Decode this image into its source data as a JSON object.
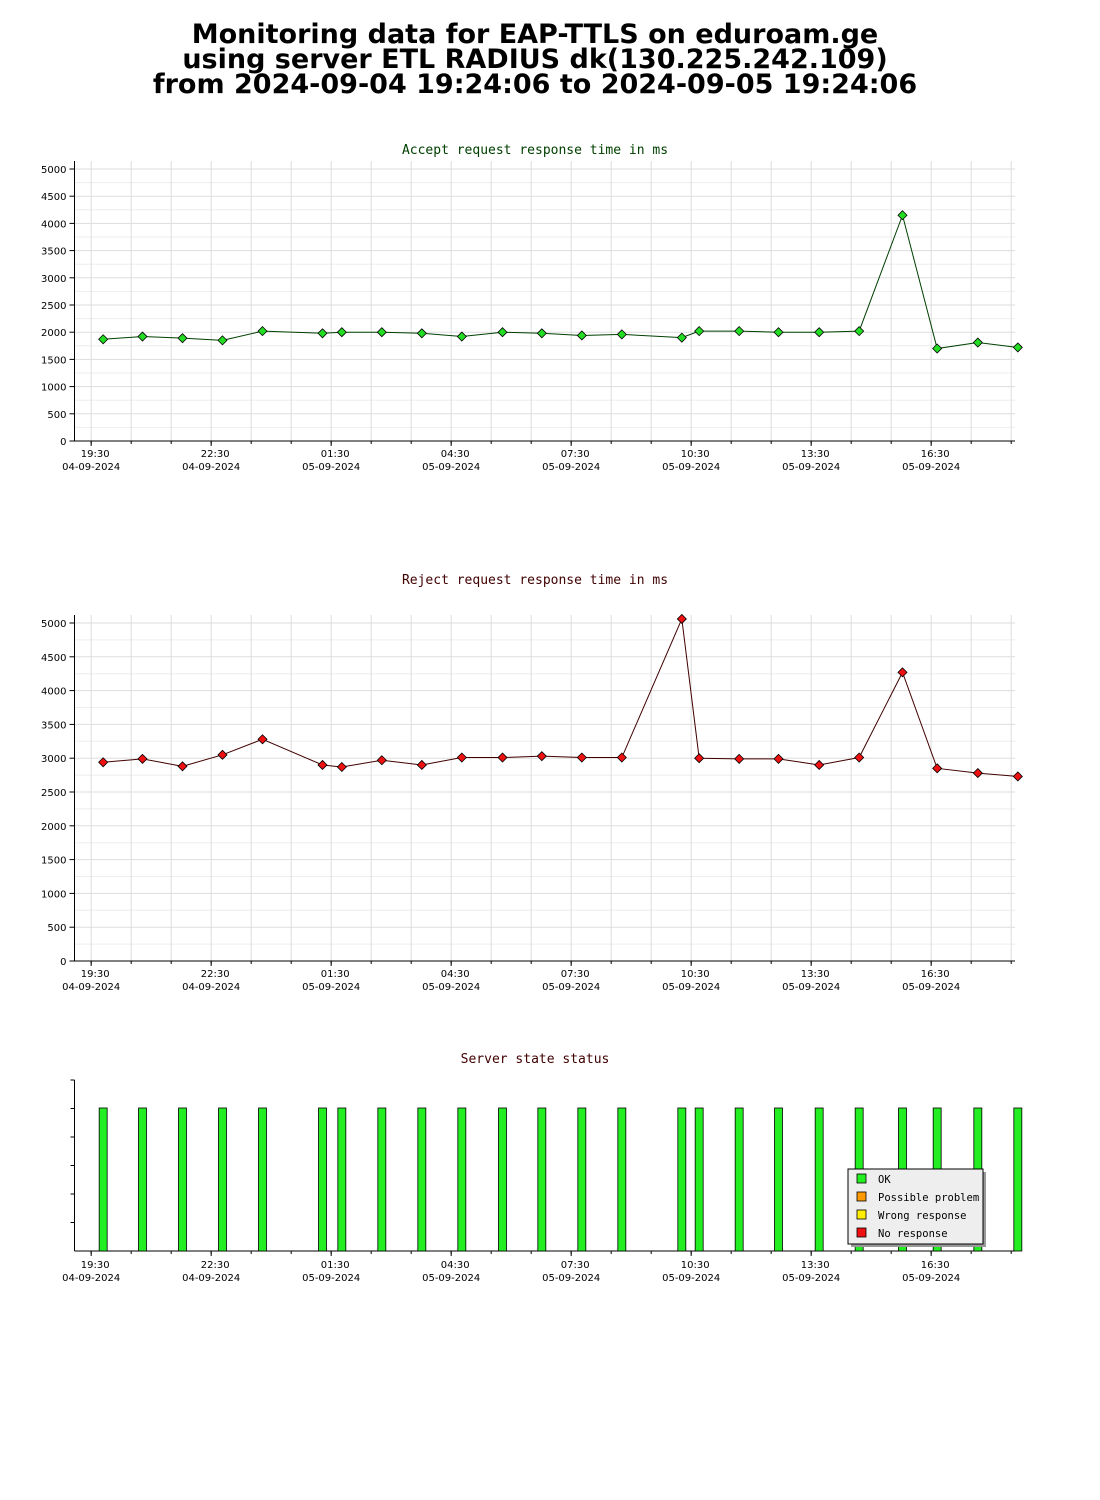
{
  "header": {
    "line1": "Monitoring data for EAP-TTLS on eduroam.ge",
    "line2": "using server ETL RADIUS dk(130.225.242.109)",
    "line3": "from 2024-09-04 19:24:06 to 2024-09-05 19:24:06"
  },
  "colors": {
    "accept_line": "#004000",
    "accept_marker": "#22dd22",
    "reject_line": "#400000",
    "reject_marker": "#ee1111",
    "accept_title": "#004000",
    "reject_title": "#400000",
    "status_title": "#400000",
    "grid": "#dddddd",
    "ok": "#22ee22",
    "possible_problem": "#ff9900",
    "wrong_response": "#ffee00",
    "no_response": "#ee1111"
  },
  "x_axis": {
    "ticks": [
      {
        "time": "19:30",
        "date": "04-09-2024"
      },
      {
        "time": "22:30",
        "date": "04-09-2024"
      },
      {
        "time": "01:30",
        "date": "05-09-2024"
      },
      {
        "time": "04:30",
        "date": "05-09-2024"
      },
      {
        "time": "07:30",
        "date": "05-09-2024"
      },
      {
        "time": "10:30",
        "date": "05-09-2024"
      },
      {
        "time": "13:30",
        "date": "05-09-2024"
      },
      {
        "time": "16:30",
        "date": "05-09-2024"
      }
    ]
  },
  "chart_data": [
    {
      "type": "line",
      "title": "Accept request response time in ms",
      "ylim": [
        0,
        5000
      ],
      "yticks": [
        0,
        500,
        1000,
        1500,
        2000,
        2500,
        3000,
        3500,
        4000,
        4500,
        5000
      ],
      "grid": true,
      "x": [
        "19:48",
        "20:47",
        "21:47",
        "22:47",
        "23:47",
        "01:17",
        "01:46",
        "02:46",
        "03:46",
        "04:46",
        "05:47",
        "06:46",
        "07:46",
        "08:46",
        "10:16",
        "10:42",
        "11:42",
        "12:41",
        "13:42",
        "14:42",
        "15:47",
        "16:39",
        "17:40",
        "18:40"
      ],
      "values": [
        1870,
        1920,
        1890,
        1850,
        2020,
        1980,
        2000,
        2000,
        1980,
        1920,
        2000,
        1980,
        1940,
        1960,
        1900,
        2020,
        2020,
        2000,
        2000,
        2020,
        4150,
        1700,
        1810,
        1720
      ]
    },
    {
      "type": "line",
      "title": "Reject request response time in ms",
      "ylim": [
        0,
        5000
      ],
      "yticks": [
        0,
        500,
        1000,
        1500,
        2000,
        2500,
        3000,
        3500,
        4000,
        4500,
        5000
      ],
      "grid": true,
      "x": [
        "19:48",
        "20:47",
        "21:47",
        "22:47",
        "23:47",
        "01:17",
        "01:46",
        "02:46",
        "03:46",
        "04:46",
        "05:47",
        "06:46",
        "07:46",
        "08:46",
        "10:16",
        "10:42",
        "11:42",
        "12:41",
        "13:42",
        "14:42",
        "15:47",
        "16:39",
        "17:40",
        "18:40"
      ],
      "values": [
        2940,
        2990,
        2880,
        3050,
        3280,
        2900,
        2870,
        2970,
        2900,
        3010,
        3010,
        3030,
        3010,
        3010,
        5060,
        3000,
        2990,
        2990,
        2900,
        3010,
        4270,
        2850,
        2780,
        2730
      ]
    },
    {
      "type": "bar",
      "title": "Server state status",
      "x": [
        "19:48",
        "20:47",
        "21:47",
        "22:47",
        "23:47",
        "01:17",
        "01:46",
        "02:46",
        "03:46",
        "04:46",
        "05:47",
        "06:46",
        "07:46",
        "08:46",
        "10:16",
        "10:42",
        "11:42",
        "12:41",
        "13:42",
        "14:42",
        "15:47",
        "16:39",
        "17:40",
        "18:40"
      ],
      "status": [
        "OK",
        "OK",
        "OK",
        "OK",
        "OK",
        "OK",
        "OK",
        "OK",
        "OK",
        "OK",
        "OK",
        "OK",
        "OK",
        "OK",
        "OK",
        "OK",
        "OK",
        "OK",
        "OK",
        "OK",
        "OK",
        "OK",
        "OK",
        "OK"
      ],
      "legend": [
        "OK",
        "Possible problem",
        "Wrong response",
        "No response"
      ],
      "legend_placement": "bottom-right"
    }
  ]
}
